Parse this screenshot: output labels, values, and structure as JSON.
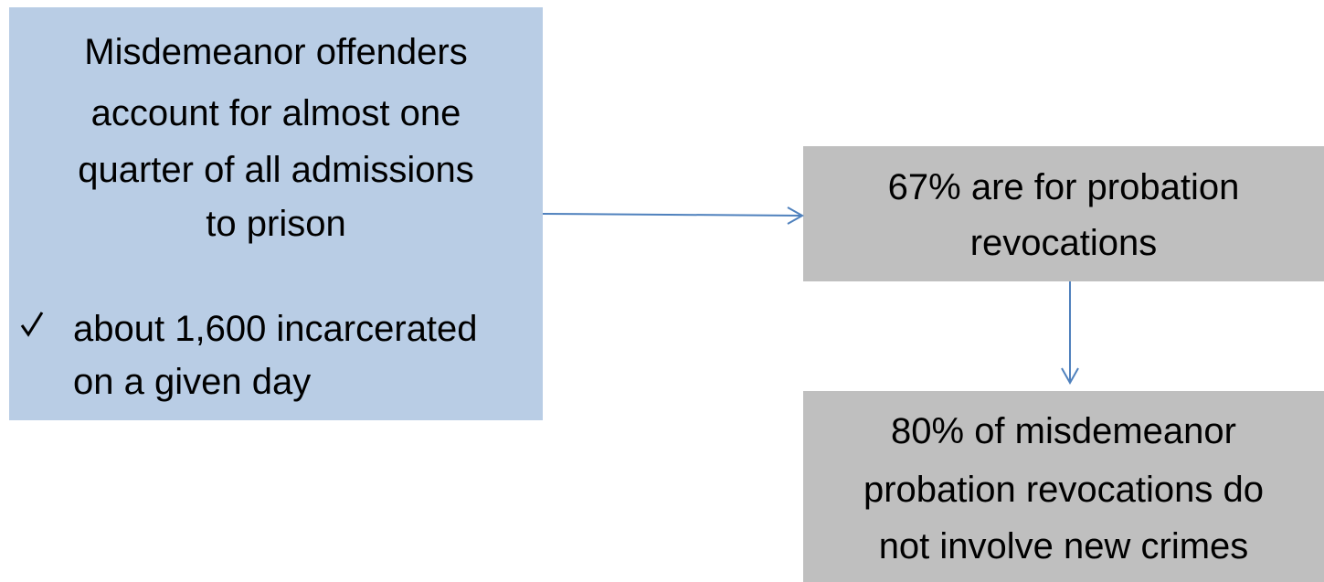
{
  "boxes": [
    {
      "lines": [
        "Misdemeanor offenders",
        "account for almost one",
        "quarter of all admissions",
        "to prison"
      ],
      "bullet": [
        "about 1,600 incarcerated",
        "on a given day"
      ]
    },
    {
      "lines": [
        "67% are for probation",
        "revocations"
      ]
    },
    {
      "lines": [
        "80% of misdemeanor",
        "probation revocations do",
        "not involve new crimes"
      ]
    }
  ]
}
